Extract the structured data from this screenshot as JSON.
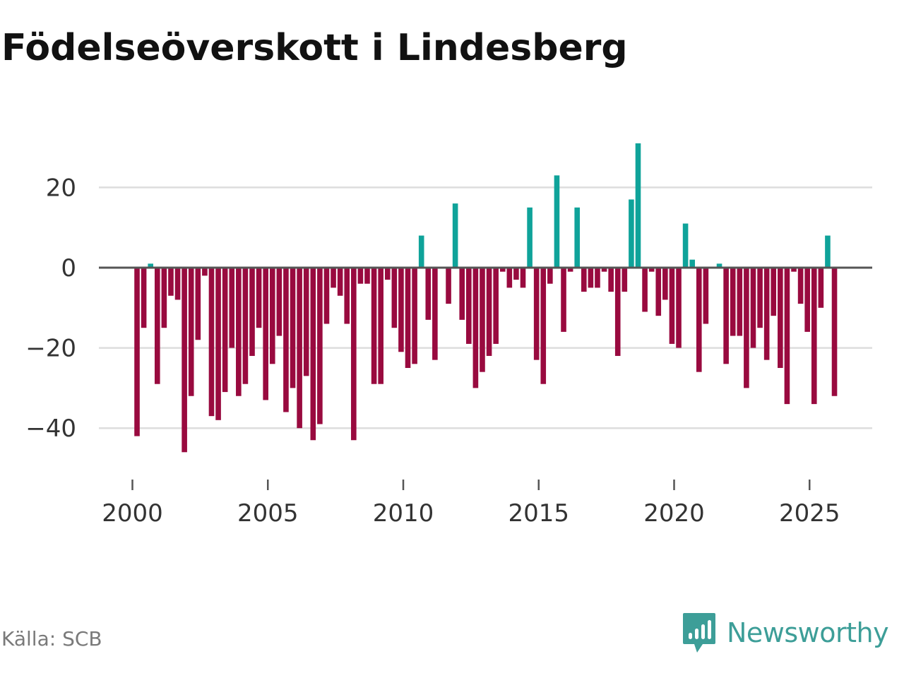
{
  "title": "Födelseöverskott i Lindesberg",
  "source": "Källa: SCB",
  "brand": "Newsworthy",
  "colors": {
    "positive": "#0fa39a",
    "negative": "#990a3f",
    "grid": "#dddddd",
    "zero_line": "#555555",
    "axis_text": "#333333",
    "brand": "#3d9e98"
  },
  "chart_data": {
    "type": "bar",
    "title": "Födelseöverskott i Lindesberg",
    "xlabel": "",
    "ylabel": "",
    "ylim": [
      -50,
      35
    ],
    "xlim": [
      1999.0,
      2027.4
    ],
    "yticks": [
      20,
      0,
      -20,
      -40
    ],
    "ytick_labels": [
      "20",
      "0",
      "−20",
      "−40"
    ],
    "xticks": [
      2000,
      2005,
      2010,
      2015,
      2020,
      2025
    ],
    "xtick_labels": [
      "2000",
      "2005",
      "2010",
      "2015",
      "2020",
      "2025"
    ],
    "grid": true,
    "frequency": "monthly (every 3 months)",
    "start": 2000.17,
    "step": 0.25,
    "values": [
      -42,
      -15,
      1,
      -29,
      -15,
      -7,
      -8,
      -46,
      -32,
      -18,
      -2,
      -37,
      -38,
      -31,
      -20,
      -32,
      -29,
      -22,
      -15,
      -33,
      -24,
      -17,
      -36,
      -30,
      -40,
      -27,
      -43,
      -39,
      -14,
      -5,
      -7,
      -14,
      -43,
      -4,
      -4,
      -29,
      -29,
      -3,
      -15,
      -21,
      -25,
      -24,
      8,
      -13,
      -23,
      0,
      -9,
      16,
      -13,
      -19,
      -30,
      -26,
      -22,
      -19,
      -1,
      -5,
      -3,
      -5,
      15,
      -23,
      -29,
      -4,
      23,
      -16,
      -1,
      15,
      -6,
      -5,
      -5,
      -1,
      -6,
      -22,
      -6,
      17,
      31,
      -11,
      -1,
      -12,
      -8,
      -19,
      -20,
      11,
      2,
      -26,
      -14,
      0,
      1,
      -24,
      -17,
      -17,
      -30,
      -20,
      -15,
      -23,
      -12,
      -25,
      -34,
      -1,
      -9,
      -16,
      -34,
      -10,
      8,
      -32
    ]
  }
}
